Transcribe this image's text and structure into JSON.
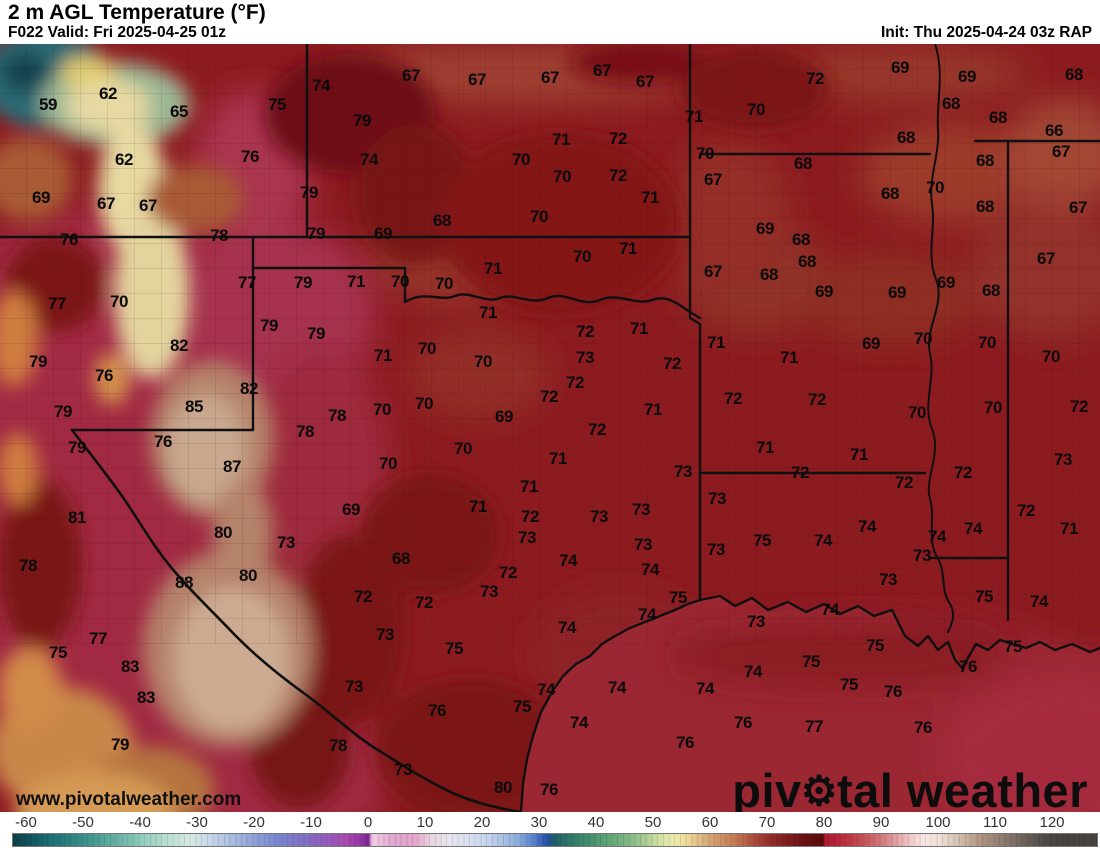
{
  "header": {
    "title": "2 m AGL Temperature (°F)",
    "left_meta": "F022 Valid: Fri 2025-04-25 01z",
    "right_meta": "Init: Thu 2025-04-24 03z RAP"
  },
  "map": {
    "watermark": "www.pivotalweather.com",
    "logo": {
      "part1": "piv",
      "gear": "⚙",
      "part2": "tal weather"
    },
    "temperature_labels": [
      [
        59,
        48,
        105
      ],
      [
        62,
        108,
        94
      ],
      [
        65,
        179,
        112
      ],
      [
        75,
        277,
        105
      ],
      [
        74,
        321,
        86
      ],
      [
        67,
        411,
        76
      ],
      [
        67,
        477,
        80
      ],
      [
        67,
        550,
        78
      ],
      [
        67,
        602,
        71
      ],
      [
        67,
        645,
        82
      ],
      [
        72,
        815,
        79
      ],
      [
        69,
        900,
        68
      ],
      [
        69,
        967,
        77
      ],
      [
        68,
        1074,
        75
      ],
      [
        62,
        124,
        160
      ],
      [
        76,
        250,
        157
      ],
      [
        79,
        362,
        121
      ],
      [
        71,
        694,
        117
      ],
      [
        70,
        756,
        110
      ],
      [
        68,
        951,
        104
      ],
      [
        68,
        998,
        118
      ],
      [
        66,
        1054,
        131
      ],
      [
        71,
        561,
        140
      ],
      [
        72,
        618,
        139
      ],
      [
        68,
        906,
        138
      ],
      [
        74,
        369,
        160
      ],
      [
        70,
        521,
        160
      ],
      [
        70,
        705,
        154
      ],
      [
        67,
        1061,
        152
      ],
      [
        68,
        803,
        164
      ],
      [
        70,
        562,
        177
      ],
      [
        72,
        618,
        176
      ],
      [
        67,
        713,
        180
      ],
      [
        68,
        985,
        161
      ],
      [
        69,
        41,
        198
      ],
      [
        67,
        106,
        204
      ],
      [
        67,
        148,
        206
      ],
      [
        79,
        309,
        193
      ],
      [
        71,
        650,
        198
      ],
      [
        70,
        935,
        188
      ],
      [
        68,
        890,
        194
      ],
      [
        68,
        442,
        221
      ],
      [
        70,
        539,
        217
      ],
      [
        69,
        383,
        234
      ],
      [
        68,
        985,
        207
      ],
      [
        67,
        1078,
        208
      ],
      [
        71,
        628,
        249
      ],
      [
        70,
        582,
        257
      ],
      [
        69,
        765,
        229
      ],
      [
        68,
        801,
        240
      ],
      [
        76,
        69,
        240
      ],
      [
        78,
        219,
        236
      ],
      [
        79,
        316,
        234
      ],
      [
        71,
        493,
        269
      ],
      [
        67,
        1046,
        259
      ],
      [
        68,
        807,
        262
      ],
      [
        67,
        713,
        272
      ],
      [
        68,
        769,
        275
      ],
      [
        79,
        303,
        283
      ],
      [
        71,
        356,
        282
      ],
      [
        70,
        400,
        282
      ],
      [
        70,
        444,
        284
      ],
      [
        69,
        946,
        283
      ],
      [
        69,
        824,
        292
      ],
      [
        69,
        897,
        293
      ],
      [
        68,
        991,
        291
      ],
      [
        77,
        57,
        304
      ],
      [
        70,
        119,
        302
      ],
      [
        77,
        247,
        283
      ],
      [
        71,
        488,
        313
      ],
      [
        72,
        585,
        332
      ],
      [
        71,
        639,
        329
      ],
      [
        71,
        716,
        343
      ],
      [
        79,
        269,
        326
      ],
      [
        79,
        316,
        334
      ],
      [
        70,
        427,
        349
      ],
      [
        71,
        383,
        356
      ],
      [
        70,
        483,
        362
      ],
      [
        73,
        585,
        358
      ],
      [
        72,
        672,
        364
      ],
      [
        71,
        789,
        358
      ],
      [
        69,
        871,
        344
      ],
      [
        70,
        923,
        339
      ],
      [
        70,
        987,
        343
      ],
      [
        70,
        1051,
        357
      ],
      [
        79,
        38,
        362
      ],
      [
        82,
        179,
        346
      ],
      [
        72,
        575,
        383
      ],
      [
        72,
        549,
        397
      ],
      [
        76,
        104,
        376
      ],
      [
        82,
        249,
        389
      ],
      [
        85,
        194,
        407
      ],
      [
        79,
        63,
        412
      ],
      [
        70,
        382,
        410
      ],
      [
        70,
        424,
        404
      ],
      [
        69,
        504,
        417
      ],
      [
        71,
        653,
        410
      ],
      [
        72,
        733,
        399
      ],
      [
        72,
        817,
        400
      ],
      [
        70,
        917,
        413
      ],
      [
        70,
        993,
        408
      ],
      [
        72,
        1079,
        407
      ],
      [
        78,
        337,
        416
      ],
      [
        78,
        305,
        432
      ],
      [
        79,
        77,
        448
      ],
      [
        76,
        163,
        442
      ],
      [
        87,
        232,
        467
      ],
      [
        72,
        597,
        430
      ],
      [
        70,
        463,
        449
      ],
      [
        70,
        388,
        464
      ],
      [
        71,
        558,
        459
      ],
      [
        73,
        683,
        472
      ],
      [
        71,
        765,
        448
      ],
      [
        71,
        859,
        455
      ],
      [
        73,
        1063,
        460
      ],
      [
        71,
        529,
        487
      ],
      [
        69,
        351,
        510
      ],
      [
        71,
        478,
        507
      ],
      [
        73,
        717,
        499
      ],
      [
        72,
        530,
        517
      ],
      [
        73,
        599,
        517
      ],
      [
        73,
        641,
        510
      ],
      [
        72,
        800,
        473
      ],
      [
        72,
        963,
        473
      ],
      [
        72,
        904,
        483
      ],
      [
        72,
        1026,
        511
      ],
      [
        81,
        77,
        518
      ],
      [
        80,
        223,
        533
      ],
      [
        73,
        286,
        543
      ],
      [
        73,
        527,
        538
      ],
      [
        74,
        867,
        527
      ],
      [
        74,
        973,
        529
      ],
      [
        74,
        937,
        537
      ],
      [
        71,
        1069,
        529
      ],
      [
        75,
        762,
        541
      ],
      [
        74,
        823,
        541
      ],
      [
        73,
        716,
        550
      ],
      [
        78,
        28,
        566
      ],
      [
        88,
        184,
        583
      ],
      [
        80,
        248,
        576
      ],
      [
        68,
        401,
        559
      ],
      [
        74,
        568,
        561
      ],
      [
        73,
        643,
        545
      ],
      [
        72,
        508,
        573
      ],
      [
        74,
        650,
        570
      ],
      [
        73,
        922,
        556
      ],
      [
        73,
        888,
        580
      ],
      [
        75,
        984,
        597
      ],
      [
        74,
        1039,
        602
      ],
      [
        72,
        363,
        597
      ],
      [
        73,
        489,
        592
      ],
      [
        72,
        424,
        603
      ],
      [
        75,
        678,
        598
      ],
      [
        74,
        647,
        615
      ],
      [
        77,
        98,
        639
      ],
      [
        75,
        58,
        653
      ],
      [
        83,
        130,
        667
      ],
      [
        73,
        385,
        635
      ],
      [
        75,
        454,
        649
      ],
      [
        74,
        567,
        628
      ],
      [
        74,
        830,
        610
      ],
      [
        73,
        756,
        622
      ],
      [
        75,
        875,
        646
      ],
      [
        75,
        1013,
        647
      ],
      [
        75,
        811,
        662
      ],
      [
        76,
        968,
        667
      ],
      [
        74,
        753,
        672
      ],
      [
        73,
        354,
        687
      ],
      [
        74,
        546,
        690
      ],
      [
        74,
        617,
        688
      ],
      [
        74,
        705,
        689
      ],
      [
        75,
        849,
        685
      ],
      [
        76,
        893,
        692
      ],
      [
        83,
        146,
        698
      ],
      [
        76,
        437,
        711
      ],
      [
        75,
        522,
        707
      ],
      [
        74,
        579,
        723
      ],
      [
        76,
        743,
        723
      ],
      [
        77,
        814,
        727
      ],
      [
        76,
        923,
        728
      ],
      [
        79,
        120,
        745
      ],
      [
        78,
        338,
        746
      ],
      [
        76,
        685,
        743
      ],
      [
        73,
        403,
        770
      ],
      [
        80,
        503,
        788
      ],
      [
        76,
        549,
        790
      ]
    ]
  },
  "colorbar": {
    "ticks": [
      -60,
      -50,
      -40,
      -30,
      -20,
      -10,
      0,
      10,
      20,
      30,
      40,
      50,
      60,
      70,
      80,
      90,
      100,
      110,
      120
    ],
    "domain": [
      -62.5,
      128
    ],
    "stops": [
      [
        -62.5,
        "#0a3f45"
      ],
      [
        -58,
        "#146069"
      ],
      [
        -54,
        "#27797b"
      ],
      [
        -50,
        "#3c918c"
      ],
      [
        -46,
        "#58a79c"
      ],
      [
        -42,
        "#7dbfb0"
      ],
      [
        -38,
        "#a3d4c5"
      ],
      [
        -34,
        "#c6e4d9"
      ],
      [
        -31,
        "#d8e8e6"
      ],
      [
        -28,
        "#c8d8e9"
      ],
      [
        -24,
        "#a9bce2"
      ],
      [
        -20,
        "#8ea2d8"
      ],
      [
        -16,
        "#7c86cd"
      ],
      [
        -12,
        "#7e73c5"
      ],
      [
        -8,
        "#915fbd"
      ],
      [
        -4,
        "#a74ab2"
      ],
      [
        -1,
        "#9032a0"
      ],
      [
        0,
        "#7c2492"
      ],
      [
        0.6,
        "#f2cfe4"
      ],
      [
        4,
        "#e3a9d2"
      ],
      [
        8,
        "#e2a2cc"
      ],
      [
        11,
        "#ead5e3"
      ],
      [
        14,
        "#e9e5ef"
      ],
      [
        18,
        "#d8e1f1"
      ],
      [
        22,
        "#b8cce9"
      ],
      [
        26,
        "#8eaede"
      ],
      [
        29,
        "#5a83ce"
      ],
      [
        30.5,
        "#3961b6"
      ],
      [
        31.5,
        "#23519c"
      ],
      [
        32.5,
        "#1e5f68"
      ],
      [
        35,
        "#2d7568"
      ],
      [
        39,
        "#45906f"
      ],
      [
        43,
        "#68a87a"
      ],
      [
        47,
        "#93c08b"
      ],
      [
        50,
        "#c0d89d"
      ],
      [
        52.5,
        "#e2e8ab"
      ],
      [
        54.5,
        "#efe7a7"
      ],
      [
        56.5,
        "#e9d193"
      ],
      [
        58.5,
        "#dcb880"
      ],
      [
        60.5,
        "#d2a171"
      ],
      [
        62.5,
        "#ca8c61"
      ],
      [
        64.5,
        "#c37852"
      ],
      [
        66.5,
        "#b45e45"
      ],
      [
        68.5,
        "#a44337"
      ],
      [
        70.5,
        "#922f2b"
      ],
      [
        72.5,
        "#832422"
      ],
      [
        74.5,
        "#761a1b"
      ],
      [
        76.5,
        "#6a1315"
      ],
      [
        78.5,
        "#5e0d0f"
      ],
      [
        79.8,
        "#560a0b"
      ],
      [
        80.2,
        "#b01730"
      ],
      [
        82,
        "#b52239"
      ],
      [
        84,
        "#bb3343"
      ],
      [
        86,
        "#c24951"
      ],
      [
        88,
        "#c95e62"
      ],
      [
        90,
        "#d3797b"
      ],
      [
        92,
        "#dd9798"
      ],
      [
        94,
        "#e8b6b6"
      ],
      [
        96,
        "#f2d5d3"
      ],
      [
        98,
        "#f7e7e4"
      ],
      [
        100,
        "#efe2d9"
      ],
      [
        102,
        "#e1d1c3"
      ],
      [
        104,
        "#d1bbaa"
      ],
      [
        106,
        "#c0a693"
      ],
      [
        108,
        "#ab907e"
      ],
      [
        110,
        "#9a8579"
      ],
      [
        112,
        "#8a786d"
      ],
      [
        114,
        "#786a62"
      ],
      [
        116,
        "#665c56"
      ],
      [
        118,
        "#55504b"
      ],
      [
        120,
        "#494542"
      ],
      [
        128,
        "#454140"
      ]
    ]
  },
  "colors": {
    "map_base_red": "#8c1b20",
    "rose_hot_west": "#a32c45",
    "tan_hottest": "#c8a88f",
    "cool_teal_corner": "#2a6b74",
    "pale_yellow_band": "#e7d9a2",
    "gulf_water": "#9b2732",
    "border_line": "#101010",
    "header_bg": "#ffffff",
    "text": "#000000"
  }
}
